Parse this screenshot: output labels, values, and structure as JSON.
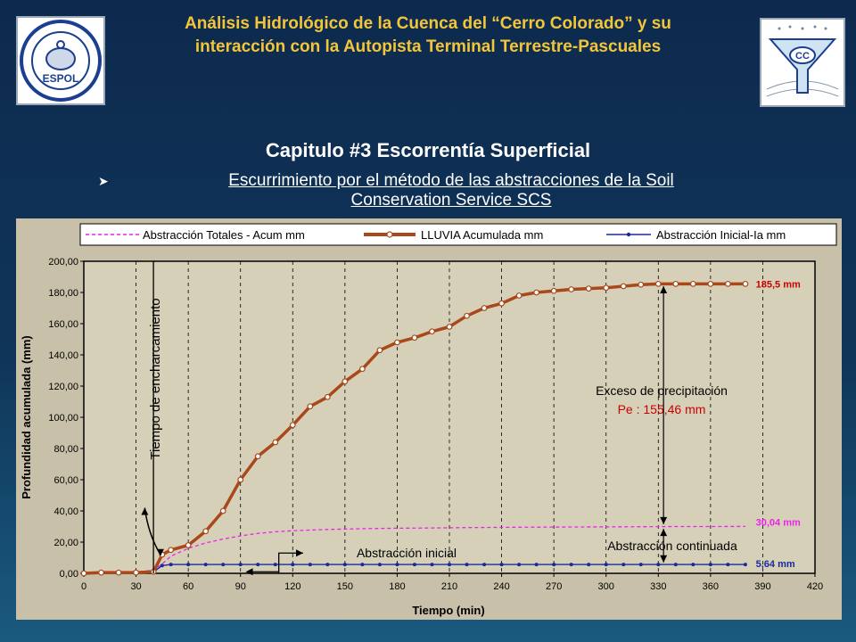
{
  "header": {
    "title_line1": "Análisis Hidrológico de la Cuenca del “Cerro Colorado” y su",
    "title_line2": "interacción con la Autopista Terminal Terrestre-Pascuales",
    "logo_left_text": "ESPOL",
    "logo_right_text": "CC"
  },
  "section": {
    "title": "Capitulo #3 Escorrentía Superficial",
    "bullet_line1": "Escurrimiento por el método de las abstracciones de la Soil",
    "bullet_line2": "Conservation Service SCS"
  },
  "colors": {
    "rain": "#a9481a",
    "total_abs": "#ee22ee",
    "initial_abs": "#1a2a9a",
    "title_gold": "#f2c53a",
    "value_red": "#cc0000"
  },
  "chart_data": {
    "type": "line",
    "xlabel": "Tiempo (min)",
    "ylabel": "Profundidad acumulada (mm)",
    "xlim": [
      0,
      420
    ],
    "ylim": [
      0,
      200
    ],
    "x_ticks": [
      0,
      30,
      60,
      90,
      120,
      150,
      180,
      210,
      240,
      270,
      300,
      330,
      360,
      390,
      420
    ],
    "y_ticks": [
      0,
      20,
      40,
      60,
      80,
      100,
      120,
      140,
      160,
      180,
      200
    ],
    "y_tick_labels": [
      "0,00",
      "20,00",
      "40,00",
      "60,00",
      "80,00",
      "100,00",
      "120,00",
      "140,00",
      "160,00",
      "180,00",
      "200,00"
    ],
    "legend_position": "top",
    "series": [
      {
        "name": "Abstracción Totales - Acum mm",
        "style": "dashed",
        "x": [
          0,
          10,
          20,
          30,
          40,
          45,
          50,
          60,
          70,
          80,
          90,
          100,
          110,
          120,
          140,
          160,
          180,
          200,
          220,
          240,
          260,
          280,
          300,
          320,
          340,
          360,
          380
        ],
        "values": [
          0.0,
          0.5,
          0.5,
          0.8,
          2.0,
          6.0,
          11.0,
          16.0,
          19.5,
          22.0,
          24.0,
          25.6,
          26.6,
          27.3,
          28.1,
          28.6,
          28.9,
          29.1,
          29.3,
          29.5,
          29.6,
          29.7,
          29.8,
          29.9,
          30.0,
          30.02,
          30.04
        ]
      },
      {
        "name": "LLUVIA Acumulada mm",
        "style": "solid-circle",
        "x": [
          0,
          10,
          20,
          30,
          40,
          45,
          50,
          60,
          70,
          80,
          90,
          100,
          110,
          120,
          130,
          140,
          150,
          160,
          170,
          180,
          190,
          200,
          210,
          220,
          230,
          240,
          250,
          260,
          270,
          280,
          290,
          300,
          310,
          320,
          330,
          340,
          350,
          360,
          370,
          380
        ],
        "values": [
          0.0,
          0.5,
          0.5,
          0.5,
          1.0,
          12.0,
          15.0,
          18.0,
          27.0,
          40.0,
          60.0,
          75.0,
          84.0,
          95.0,
          107.0,
          113.0,
          123.0,
          131.0,
          143.0,
          148.0,
          151.0,
          155.0,
          158.0,
          165.0,
          170.0,
          173.0,
          178.0,
          180.0,
          181.0,
          182.0,
          182.5,
          183.0,
          184.0,
          185.0,
          185.5,
          185.5,
          185.5,
          185.5,
          185.5,
          185.5
        ]
      },
      {
        "name": "Abstracción Inicial-Ia mm",
        "style": "solid-dot",
        "x": [
          0,
          10,
          20,
          30,
          40,
          45,
          50,
          60,
          70,
          80,
          90,
          100,
          110,
          120,
          130,
          140,
          150,
          160,
          170,
          180,
          190,
          200,
          210,
          220,
          230,
          240,
          250,
          260,
          270,
          280,
          290,
          300,
          310,
          320,
          330,
          340,
          350,
          360,
          370,
          380
        ],
        "values": [
          0.0,
          0.5,
          0.5,
          0.5,
          1.0,
          5.0,
          5.64,
          5.64,
          5.64,
          5.64,
          5.64,
          5.64,
          5.64,
          5.64,
          5.64,
          5.64,
          5.64,
          5.64,
          5.64,
          5.64,
          5.64,
          5.64,
          5.64,
          5.64,
          5.64,
          5.64,
          5.64,
          5.64,
          5.64,
          5.64,
          5.64,
          5.64,
          5.64,
          5.64,
          5.64,
          5.64,
          5.64,
          5.64,
          5.64,
          5.64
        ]
      }
    ],
    "end_labels": [
      "185,5 mm",
      "30,04 mm",
      "5,64 mm"
    ],
    "annotations": {
      "ponding_time": "Tiempo  de encharcamiento",
      "excess_title": "Exceso de precipitación",
      "excess_value": "Pe : 155,46 mm",
      "continued_abstraction": "Abstracción continuada",
      "initial_abstraction": "Abstracción inicial"
    }
  }
}
